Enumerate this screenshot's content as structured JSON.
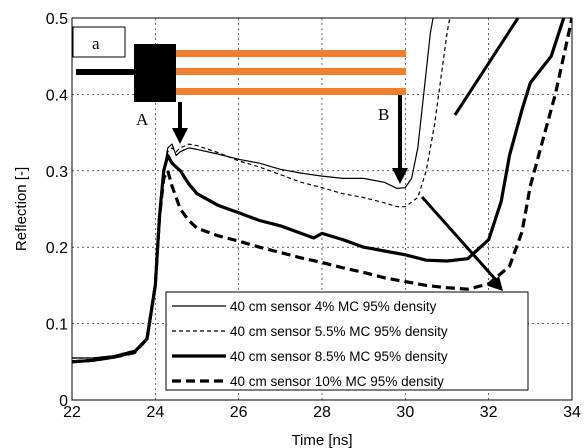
{
  "chart_data": {
    "type": "line",
    "xlabel": "Time [ns]",
    "ylabel": "Reflection [-]",
    "xlim": [
      22,
      34
    ],
    "ylim": [
      0,
      0.5
    ],
    "xticks": [
      22,
      24,
      26,
      28,
      30,
      32,
      34
    ],
    "yticks": [
      0,
      0.1,
      0.2,
      0.3,
      0.4,
      0.5
    ],
    "grid": true,
    "legend_position": "bottom-right",
    "series": [
      {
        "name": "40 cm sensor 4% MC 95% density",
        "style": "thin-solid",
        "x": [
          22,
          22.5,
          23,
          23.5,
          23.8,
          24.0,
          24.1,
          24.2,
          24.3,
          24.4,
          24.5,
          24.6,
          24.8,
          25,
          25.5,
          26,
          26.5,
          27,
          27.5,
          28,
          28.5,
          29,
          29.5,
          29.8,
          30,
          30.15,
          30.3,
          30.4,
          30.5,
          30.6,
          30.7
        ],
        "y": [
          0.055,
          0.055,
          0.058,
          0.065,
          0.08,
          0.15,
          0.24,
          0.3,
          0.33,
          0.335,
          0.32,
          0.325,
          0.33,
          0.328,
          0.322,
          0.315,
          0.31,
          0.302,
          0.297,
          0.293,
          0.29,
          0.29,
          0.285,
          0.277,
          0.278,
          0.29,
          0.33,
          0.38,
          0.43,
          0.48,
          0.51
        ]
      },
      {
        "name": "40 cm sensor 5.5% MC 95% density",
        "style": "thin-dashed",
        "x": [
          22,
          22.5,
          23,
          23.5,
          23.8,
          24.0,
          24.1,
          24.2,
          24.3,
          24.4,
          24.5,
          24.6,
          24.8,
          25,
          25.5,
          26,
          26.5,
          27,
          27.5,
          28,
          28.5,
          29,
          29.5,
          29.8,
          30,
          30.3,
          30.5,
          30.7,
          30.85,
          31.0,
          31.1
        ],
        "y": [
          0.055,
          0.055,
          0.058,
          0.065,
          0.08,
          0.15,
          0.24,
          0.3,
          0.325,
          0.33,
          0.325,
          0.33,
          0.335,
          0.333,
          0.324,
          0.313,
          0.305,
          0.295,
          0.285,
          0.278,
          0.27,
          0.265,
          0.258,
          0.253,
          0.253,
          0.265,
          0.3,
          0.36,
          0.42,
          0.48,
          0.51
        ]
      },
      {
        "name": "40 cm sensor 8.5% MC 95% density",
        "style": "thick-solid",
        "x": [
          22,
          22.5,
          23,
          23.5,
          23.8,
          24.0,
          24.1,
          24.2,
          24.3,
          24.4,
          24.6,
          24.8,
          25,
          25.5,
          26,
          26.5,
          27,
          27.5,
          27.8,
          28,
          28.5,
          29,
          29.5,
          30,
          30.5,
          31,
          31.5,
          32,
          32.3,
          32.5,
          32.8,
          33,
          33.5,
          33.8
        ],
        "y": [
          0.05,
          0.052,
          0.056,
          0.063,
          0.08,
          0.15,
          0.24,
          0.3,
          0.32,
          0.31,
          0.3,
          0.283,
          0.27,
          0.255,
          0.245,
          0.235,
          0.228,
          0.218,
          0.212,
          0.218,
          0.21,
          0.2,
          0.195,
          0.19,
          0.183,
          0.182,
          0.185,
          0.21,
          0.26,
          0.32,
          0.38,
          0.415,
          0.45,
          0.5
        ]
      },
      {
        "name": "40 cm sensor 10% MC 95% density",
        "style": "thick-dashed",
        "x": [
          22,
          22.5,
          23,
          23.5,
          23.8,
          24.0,
          24.1,
          24.2,
          24.3,
          24.4,
          24.6,
          24.8,
          25,
          25.5,
          26,
          26.5,
          27,
          27.5,
          28,
          28.5,
          29,
          29.5,
          30,
          30.5,
          31,
          31.5,
          32,
          32.5,
          32.8,
          33,
          33.3,
          33.6,
          33.8,
          34
        ],
        "y": [
          0.05,
          0.052,
          0.056,
          0.062,
          0.08,
          0.15,
          0.24,
          0.29,
          0.3,
          0.28,
          0.25,
          0.235,
          0.225,
          0.215,
          0.208,
          0.2,
          0.193,
          0.186,
          0.18,
          0.173,
          0.167,
          0.16,
          0.155,
          0.15,
          0.147,
          0.145,
          0.152,
          0.175,
          0.22,
          0.28,
          0.34,
          0.4,
          0.45,
          0.5
        ]
      }
    ],
    "annotations": {
      "panel_label": "a",
      "point_a": "A",
      "point_b": "B"
    }
  }
}
